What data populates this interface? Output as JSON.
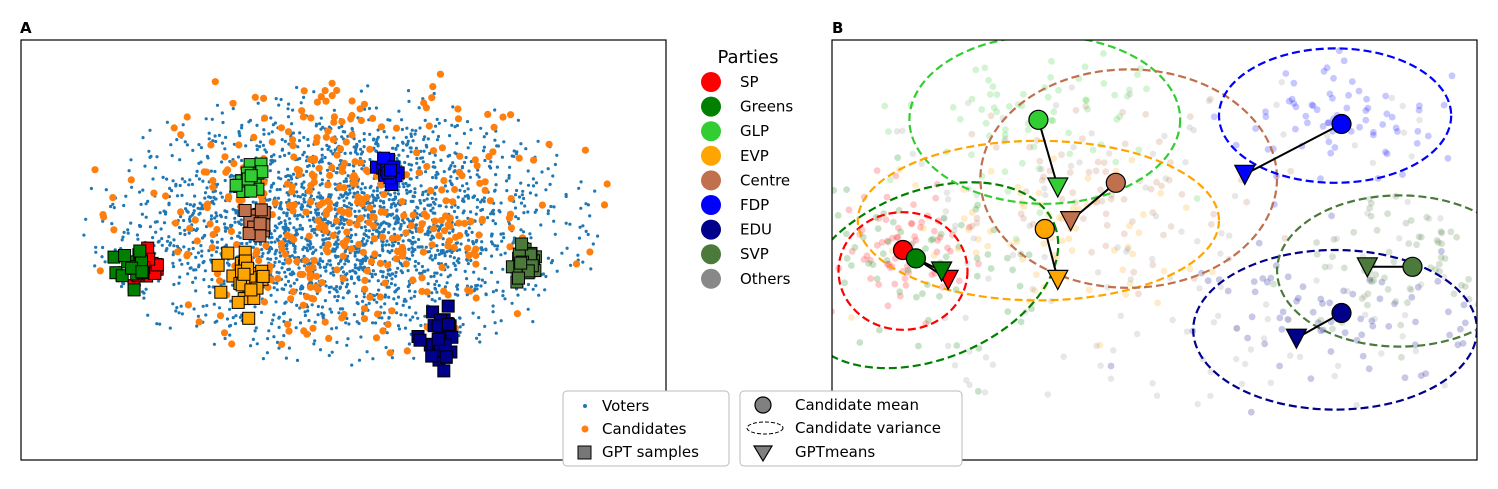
{
  "figure": {
    "panel_a_label": "A",
    "panel_b_label": "B"
  },
  "chart_data": [
    {
      "type": "scatter",
      "panel": "A",
      "title": "",
      "xlabel": "",
      "ylabel": "",
      "axes_visible": false,
      "xlim": [
        0,
        100
      ],
      "ylim": [
        0,
        100
      ],
      "series": [
        {
          "name": "Voters",
          "color": "#1f77b4",
          "marker": "dot",
          "cloud": {
            "center": [
              50,
              56
            ],
            "spread": [
              30,
              25
            ],
            "count": 2600
          }
        },
        {
          "name": "Candidates",
          "color": "#ff7f0e",
          "marker": "circle",
          "cloud": {
            "center": [
              50,
              58
            ],
            "spread": [
              31,
              27
            ],
            "count": 420
          }
        },
        {
          "name": "GPT samples",
          "color": "#777777",
          "marker": "square",
          "clusters": [
            {
              "party": "SP",
              "color": "#ff0000",
              "center": [
                19,
                46
              ],
              "spread": [
                2.4,
                3.5
              ],
              "count": 20
            },
            {
              "party": "Greens",
              "color": "#008000",
              "center": [
                17,
                46
              ],
              "spread": [
                2.4,
                3.5
              ],
              "count": 14
            },
            {
              "party": "GLP",
              "color": "#32cd32",
              "center": [
                36,
                66
              ],
              "spread": [
                2.2,
                4.0
              ],
              "count": 18
            },
            {
              "party": "Centre",
              "color": "#c0704c",
              "center": [
                37,
                57
              ],
              "spread": [
                1.5,
                3.5
              ],
              "count": 14
            },
            {
              "party": "EVP",
              "color": "#ffa500",
              "center": [
                35,
                43
              ],
              "spread": [
                2.5,
                4.5
              ],
              "count": 30
            },
            {
              "party": "FDP",
              "color": "#0000ff",
              "center": [
                57,
                69
              ],
              "spread": [
                2.0,
                2.8
              ],
              "count": 15
            },
            {
              "party": "EDU",
              "color": "#00008b",
              "center": [
                65,
                29
              ],
              "spread": [
                2.3,
                5.0
              ],
              "count": 30
            },
            {
              "party": "SVP",
              "color": "#4b7a3b",
              "center": [
                78,
                47
              ],
              "spread": [
                2.0,
                4.0
              ],
              "count": 25
            }
          ]
        }
      ]
    },
    {
      "type": "scatter",
      "panel": "B",
      "title": "",
      "xlabel": "",
      "ylabel": "",
      "axes_visible": false,
      "xlim": [
        0,
        100
      ],
      "ylim": [
        0,
        100
      ],
      "parties": [
        {
          "name": "SP",
          "color": "#ff0000",
          "candidate_mean": [
            11,
            50
          ],
          "gpt_mean": [
            18,
            43
          ],
          "variance_ellipse": {
            "center": [
              11,
              45
            ],
            "radii": [
              10,
              14
            ],
            "angle": 0
          }
        },
        {
          "name": "Greens",
          "color": "#008000",
          "candidate_mean": [
            13,
            48
          ],
          "gpt_mean": [
            17,
            45
          ],
          "variance_ellipse": {
            "center": [
              15,
              44
            ],
            "radii": [
              21,
              20
            ],
            "angle": -22
          }
        },
        {
          "name": "GLP",
          "color": "#32cd32",
          "candidate_mean": [
            32,
            81
          ],
          "gpt_mean": [
            35,
            65
          ],
          "variance_ellipse": {
            "center": [
              33,
              81
            ],
            "radii": [
              21,
              20
            ],
            "angle": 0
          }
        },
        {
          "name": "EVP",
          "color": "#ffa500",
          "candidate_mean": [
            33,
            55
          ],
          "gpt_mean": [
            35,
            43
          ],
          "variance_ellipse": {
            "center": [
              32,
              57
            ],
            "radii": [
              28,
              19
            ],
            "angle": 0
          }
        },
        {
          "name": "Centre",
          "color": "#c0704c",
          "candidate_mean": [
            44,
            66
          ],
          "gpt_mean": [
            37,
            57
          ],
          "variance_ellipse": {
            "center": [
              46,
              67
            ],
            "radii": [
              23,
              26
            ],
            "angle": 0
          }
        },
        {
          "name": "FDP",
          "color": "#0000ff",
          "candidate_mean": [
            79,
            80
          ],
          "gpt_mean": [
            64,
            68
          ],
          "variance_ellipse": {
            "center": [
              78,
              82
            ],
            "radii": [
              18,
              16
            ],
            "angle": 0
          }
        },
        {
          "name": "EDU",
          "color": "#00008b",
          "candidate_mean": [
            79,
            35
          ],
          "gpt_mean": [
            72,
            29
          ],
          "variance_ellipse": {
            "center": [
              78,
              31
            ],
            "radii": [
              22,
              19
            ],
            "angle": 0
          }
        },
        {
          "name": "SVP",
          "color": "#4b7a3b",
          "candidate_mean": [
            90,
            46
          ],
          "gpt_mean": [
            83,
            46
          ],
          "variance_ellipse": {
            "center": [
              88,
              45
            ],
            "radii": [
              19,
              18
            ],
            "angle": 0
          }
        },
        {
          "name": "Others",
          "color": "#888888"
        }
      ]
    }
  ],
  "party_legend": {
    "title": "Parties",
    "entries": [
      {
        "label": "SP",
        "color": "#ff0000"
      },
      {
        "label": "Greens",
        "color": "#008000"
      },
      {
        "label": "GLP",
        "color": "#32cd32"
      },
      {
        "label": "EVP",
        "color": "#ffa500"
      },
      {
        "label": "Centre",
        "color": "#c0704c"
      },
      {
        "label": "FDP",
        "color": "#0000ff"
      },
      {
        "label": "EDU",
        "color": "#00008b"
      },
      {
        "label": "SVP",
        "color": "#4b7a3b"
      },
      {
        "label": "Others",
        "color": "#888888"
      }
    ]
  },
  "legend_a": {
    "voters": "Voters",
    "candidates": "Candidates",
    "gpt_samples": "GPT samples"
  },
  "legend_b": {
    "candidate_mean": "Candidate mean",
    "candidate_variance": "Candidate variance",
    "gpt_means": "GPTmeans"
  }
}
